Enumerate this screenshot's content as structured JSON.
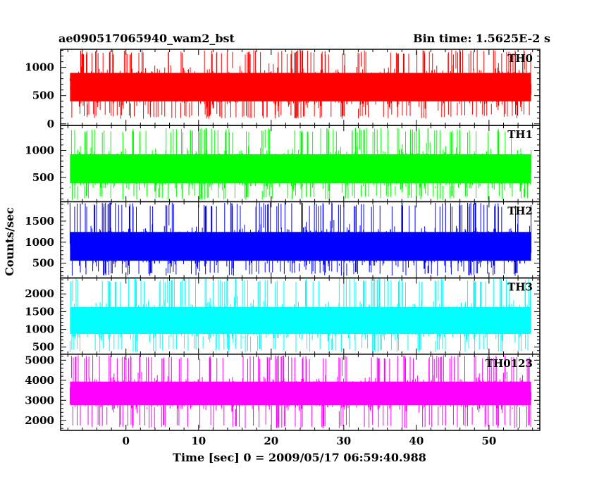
{
  "header": {
    "left_title": "ae090517065940_wam2_bst",
    "right_title": "Bin time: 1.5625E-2 s"
  },
  "axes": {
    "xlabel": "Time [sec] 0 = 2009/05/17 06:59:40.988",
    "ylabel": "Counts/sec"
  },
  "chart_data": {
    "type": "line",
    "title": "ae090517065940_wam2_bst",
    "subtitle": "Bin time: 1.5625E-2 s",
    "xlabel": "Time [sec] 0 = 2009/05/17 06:59:40.988",
    "ylabel": "Counts/sec",
    "xlim": [
      -9,
      57
    ],
    "x_range": [
      -7.7,
      55.8
    ],
    "bin_time": 0.015625,
    "x_ticks": [
      0,
      10,
      20,
      30,
      40,
      50
    ],
    "grid": false,
    "legend": "none",
    "panels": [
      {
        "name": "TH0",
        "color": "#ff0000",
        "ylim": [
          -30,
          1320
        ],
        "y_ticks": [
          0,
          500,
          1000
        ],
        "signal": {
          "mean": 650,
          "spread": 280,
          "min": 90,
          "max": 1310
        }
      },
      {
        "name": "TH1",
        "color": "#00ff00",
        "ylim": [
          50,
          1460
        ],
        "y_ticks": [
          500,
          1000
        ],
        "signal": {
          "mean": 660,
          "spread": 300,
          "min": 80,
          "max": 1420
        }
      },
      {
        "name": "TH2",
        "color": "#0000ff",
        "ylim": [
          150,
          1960
        ],
        "y_ticks": [
          500,
          1000,
          1500
        ],
        "signal": {
          "mean": 900,
          "spread": 380,
          "min": 200,
          "max": 1950
        }
      },
      {
        "name": "TH3",
        "color": "#00ffff",
        "ylim": [
          300,
          2450
        ],
        "y_ticks": [
          500,
          1000,
          1500,
          2000
        ],
        "signal": {
          "mean": 1250,
          "spread": 420,
          "min": 350,
          "max": 2450
        }
      },
      {
        "name": "TH0123",
        "color": "#ff00ff",
        "ylim": [
          1500,
          5300
        ],
        "y_ticks": [
          2000,
          3000,
          4000,
          5000
        ],
        "signal": {
          "mean": 3350,
          "spread": 650,
          "min": 1600,
          "max": 5250
        }
      }
    ]
  }
}
